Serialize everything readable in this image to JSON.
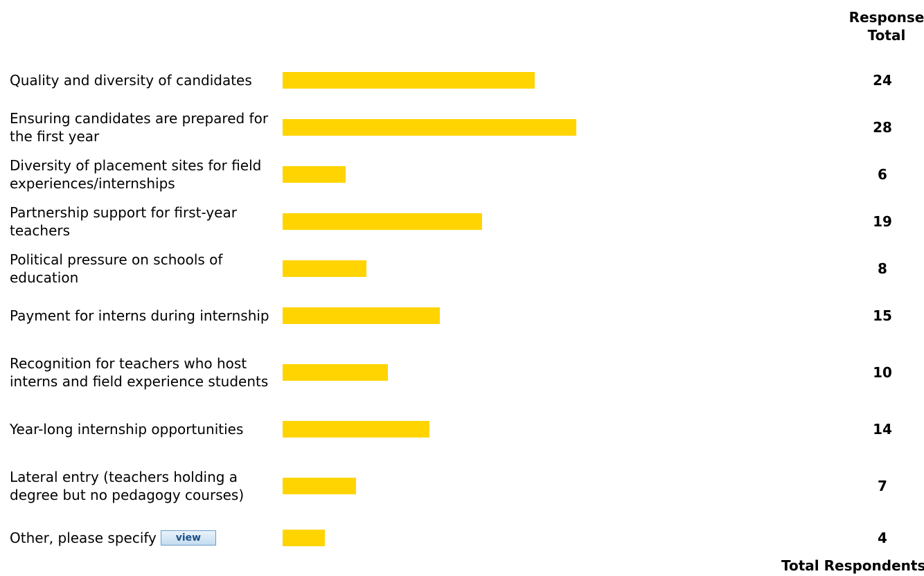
{
  "header": {
    "line1": "Response",
    "line2": "Total"
  },
  "footer": {
    "total_respondents_label": "Total Respondents"
  },
  "view_button_label": "view",
  "chart_data": {
    "type": "bar",
    "orientation": "horizontal",
    "bar_color": "#ffd400",
    "categories": [
      "Quality and diversity of candidates",
      "Ensuring candidates are prepared for the first year",
      "Diversity of placement sites for field experiences/internships",
      "Partnership support for first-year teachers",
      "Political pressure on schools of education",
      "Payment for interns during internship",
      "Recognition for teachers who host interns and field experience students",
      "Year-long internship opportunities",
      "Lateral entry (teachers holding a degree but no pedagogy courses)",
      "Other, please specify"
    ],
    "values": [
      24,
      28,
      6,
      19,
      8,
      15,
      10,
      14,
      7,
      4
    ],
    "value_labels": [
      "24",
      "28",
      "6",
      "19",
      "8",
      "15",
      "10",
      "14",
      "7",
      "4"
    ],
    "xlim": [
      0,
      100
    ]
  }
}
